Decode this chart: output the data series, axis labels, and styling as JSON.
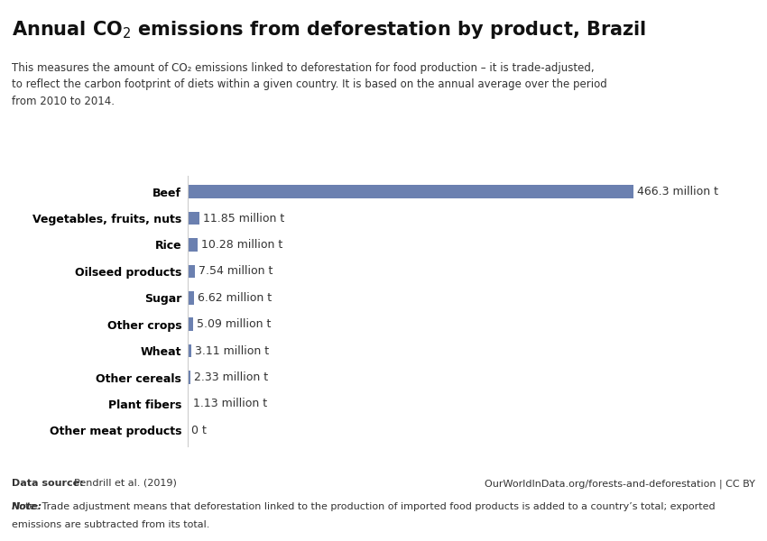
{
  "title_part1": "Annual CO",
  "title_part2": " emissions from deforestation by product, Brazil",
  "subtitle_line1": "This measures the amount of CO₂ emissions linked to deforestation for food production – it is trade-adjusted,",
  "subtitle_line2": "to reflect the carbon footprint of diets within a given country. It is based on the annual average over the period",
  "subtitle_line3": "from 2010 to 2014.",
  "categories": [
    "Beef",
    "Vegetables, fruits, nuts",
    "Rice",
    "Oilseed products",
    "Sugar",
    "Other crops",
    "Wheat",
    "Other cereals",
    "Plant fibers",
    "Other meat products"
  ],
  "values": [
    466.3,
    11.85,
    10.28,
    7.54,
    6.62,
    5.09,
    3.11,
    2.33,
    1.13,
    0.0
  ],
  "labels": [
    "466.3 million t",
    "11.85 million t",
    "10.28 million t",
    "7.54 million t",
    "6.62 million t",
    "5.09 million t",
    "3.11 million t",
    "2.33 million t",
    "1.13 million t",
    "0 t"
  ],
  "bar_color": "#6b80b0",
  "background_color": "#ffffff",
  "text_color": "#333333",
  "url": "OurWorldInData.org/forests-and-deforestation | CC BY",
  "datasource_bold": "Data source:",
  "datasource_text": " Pendrill et al. (2019)",
  "note_bold": "Note:",
  "note_text": " Trade adjustment means that deforestation linked to the production of imported food products is added to a country’s total; exported emissions are subtracted from its total.",
  "logo_bg": "#1a3a5c",
  "logo_red": "#c0392b",
  "xlim_max": 510
}
